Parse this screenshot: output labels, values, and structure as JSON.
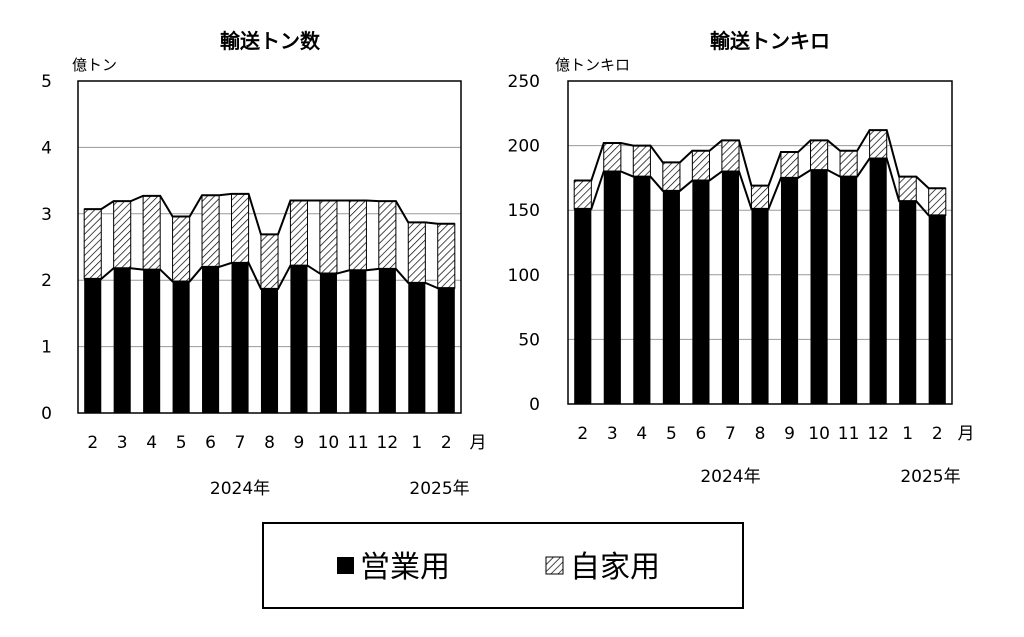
{
  "legend": {
    "commercial": "営業用",
    "private": "自家用"
  },
  "chart_data": [
    {
      "type": "bar",
      "stacked": true,
      "title": "輸送トン数",
      "ylabel": "億トン",
      "xunit": "月",
      "ylim": [
        0,
        5
      ],
      "yticks": [
        0,
        1,
        2,
        3,
        4,
        5
      ],
      "grid": true,
      "categories": [
        "2",
        "3",
        "4",
        "5",
        "6",
        "7",
        "8",
        "9",
        "10",
        "11",
        "12",
        "1",
        "2"
      ],
      "year_labels": [
        {
          "label": "2024年",
          "start": 0,
          "end": 10
        },
        {
          "label": "2025年",
          "start": 11,
          "end": 12
        }
      ],
      "series": [
        {
          "name": "営業用",
          "values": [
            2.02,
            2.18,
            2.16,
            1.98,
            2.2,
            2.26,
            1.87,
            2.22,
            2.1,
            2.15,
            2.17,
            1.96,
            1.88
          ]
        },
        {
          "name": "自家用",
          "values": [
            1.05,
            1.01,
            1.11,
            0.98,
            1.08,
            1.04,
            0.82,
            0.98,
            1.1,
            1.05,
            1.02,
            0.91,
            0.97
          ]
        }
      ]
    },
    {
      "type": "bar",
      "stacked": true,
      "title": "輸送トンキロ",
      "ylabel": "億トンキロ",
      "xunit": "月",
      "ylim": [
        0,
        250
      ],
      "yticks": [
        0,
        50,
        100,
        150,
        200,
        250
      ],
      "grid": true,
      "categories": [
        "2",
        "3",
        "4",
        "5",
        "6",
        "7",
        "8",
        "9",
        "10",
        "11",
        "12",
        "1",
        "2"
      ],
      "year_labels": [
        {
          "label": "2024年",
          "start": 0,
          "end": 10
        },
        {
          "label": "2025年",
          "start": 11,
          "end": 12
        }
      ],
      "series": [
        {
          "name": "営業用",
          "values": [
            151,
            180,
            176,
            165,
            173,
            180,
            151,
            175,
            181,
            176,
            190,
            157,
            146
          ]
        },
        {
          "name": "自家用",
          "values": [
            22,
            22,
            24,
            22,
            23,
            24,
            18,
            20,
            23,
            20,
            22,
            19,
            21
          ]
        }
      ]
    }
  ]
}
